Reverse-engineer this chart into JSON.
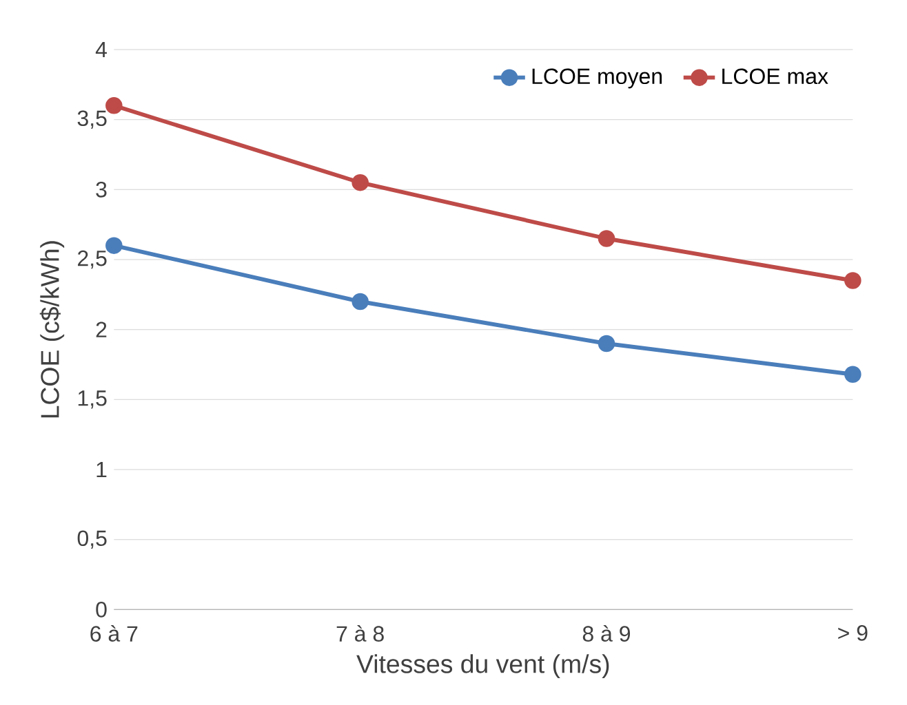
{
  "chart_data": {
    "type": "line",
    "xlabel": "Vitesses du vent (m/s)",
    "ylabel": "LCOE (c$/kWh)",
    "categories": [
      "6 à 7",
      "7 à 8",
      "8 à 9",
      "> 9"
    ],
    "series": [
      {
        "name": "LCOE moyen",
        "color": "#4a7ebb",
        "values": [
          2.6,
          2.2,
          1.9,
          1.68
        ]
      },
      {
        "name": "LCOE max",
        "color": "#be4b48",
        "values": [
          3.6,
          3.05,
          2.65,
          2.35
        ]
      }
    ],
    "ylim": [
      0,
      4
    ],
    "yticks": [
      0,
      {
        "value": 0.5,
        "label": "0,5"
      },
      1,
      {
        "value": 1.5,
        "label": "1,5"
      },
      2,
      {
        "value": 2.5,
        "label": "2,5"
      },
      3,
      {
        "value": 3.5,
        "label": "3,5"
      },
      4
    ],
    "grid": "y",
    "legend": "top right",
    "marker": "circle",
    "line_style": "solid"
  }
}
